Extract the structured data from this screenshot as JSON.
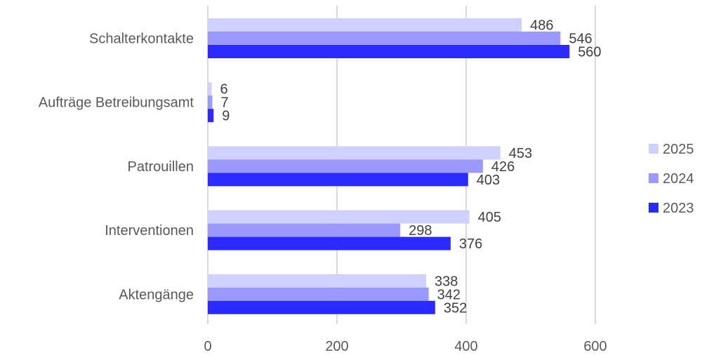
{
  "chart_data": {
    "type": "bar",
    "orientation": "horizontal",
    "categories": [
      "Schalterkontakte",
      "Aufträge Betreibungsamt",
      "Patrouillen",
      "Interventionen",
      "Aktengänge"
    ],
    "series": [
      {
        "name": "2025",
        "color": "#d0d0ff",
        "values": [
          486,
          6,
          453,
          405,
          338
        ]
      },
      {
        "name": "2024",
        "color": "#9999ff",
        "values": [
          546,
          7,
          426,
          298,
          342
        ]
      },
      {
        "name": "2023",
        "color": "#2a2aff",
        "values": [
          560,
          9,
          403,
          376,
          352
        ]
      }
    ],
    "xlim": [
      0,
      600
    ],
    "x_ticks": [
      "0",
      "200",
      "400",
      "600"
    ],
    "grid": "vertical",
    "legend": "right"
  }
}
